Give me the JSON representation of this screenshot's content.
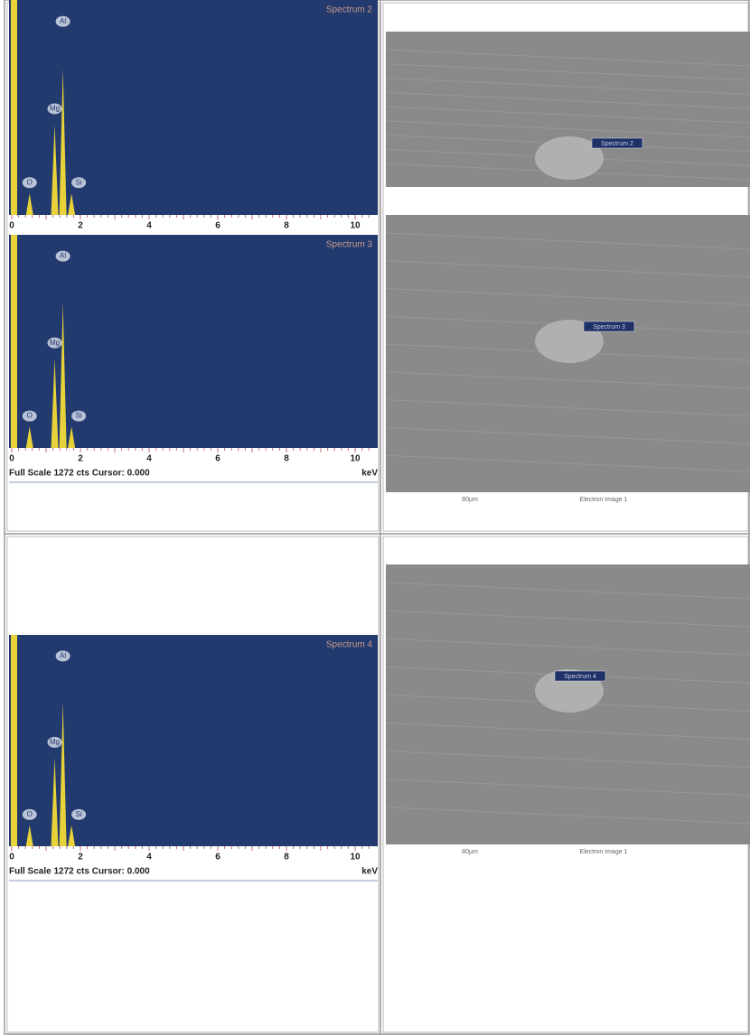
{
  "spectra": [
    {
      "title": "Spectrum 2",
      "peaks": [
        "O",
        "Mg",
        "Al",
        "Si"
      ],
      "ticks": [
        "0",
        "2",
        "4",
        "6",
        "8",
        "10"
      ]
    },
    {
      "title": "Spectrum 3",
      "peaks": [
        "O",
        "Mg",
        "Al",
        "Si"
      ],
      "ticks": [
        "0",
        "2",
        "4",
        "6",
        "8",
        "10"
      ],
      "footer": "Full Scale 1272 cts Cursor: 0.000",
      "unit": "keV"
    },
    {
      "title": "Spectrum 4",
      "peaks": [
        "O",
        "Mg",
        "Al",
        "Si"
      ],
      "ticks": [
        "0",
        "2",
        "4",
        "6",
        "8",
        "10"
      ],
      "footer": "Full Scale 1272 cts Cursor: 0.000",
      "unit": "keV"
    }
  ],
  "images": [
    {
      "label": "Spectrum 2"
    },
    {
      "label": "Spectrum 3",
      "scale": "80µm",
      "caption": "Electron Image 1"
    },
    {
      "label": "Spectrum 4",
      "scale": "80µm",
      "caption": "Electron Image 1"
    }
  ]
}
